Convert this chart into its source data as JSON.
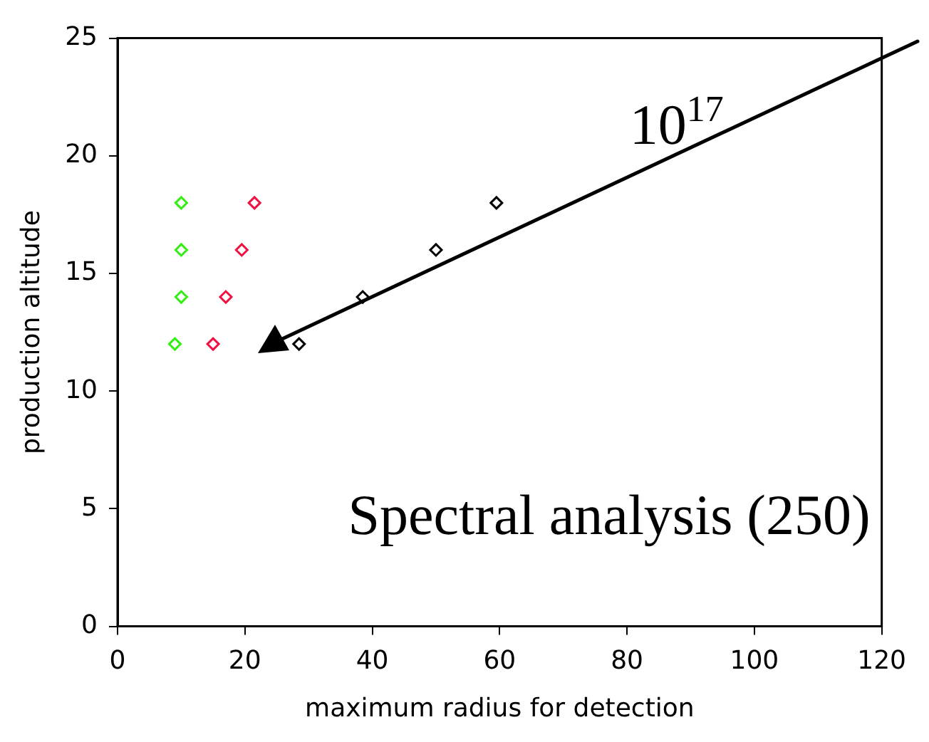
{
  "chart_data": {
    "type": "scatter",
    "xlabel": "maximum radius for detection",
    "ylabel": "production altitude",
    "series": [
      {
        "color": "#33ee11",
        "x": [
          10,
          10,
          10,
          9
        ],
        "values": [
          18,
          16,
          14,
          12
        ]
      },
      {
        "color": "#ee1144",
        "x": [
          21.5,
          19.5,
          17,
          15
        ],
        "values": [
          18,
          16,
          14,
          12
        ]
      },
      {
        "color": "#000000",
        "x": [
          28.5,
          38.5,
          50,
          59.5
        ],
        "values": [
          12,
          14,
          16,
          18
        ]
      }
    ],
    "marker": "diamond",
    "grid": false,
    "legend": false,
    "xlim": [
      0,
      120
    ],
    "xticks": [
      0,
      20,
      40,
      60,
      80,
      100,
      120
    ],
    "ylim": [
      0,
      25
    ],
    "yticks": [
      0,
      5,
      10,
      15,
      20,
      25
    ],
    "annotations": [
      "10$^{17}$",
      "Spectral analysis (250)"
    ]
  }
}
